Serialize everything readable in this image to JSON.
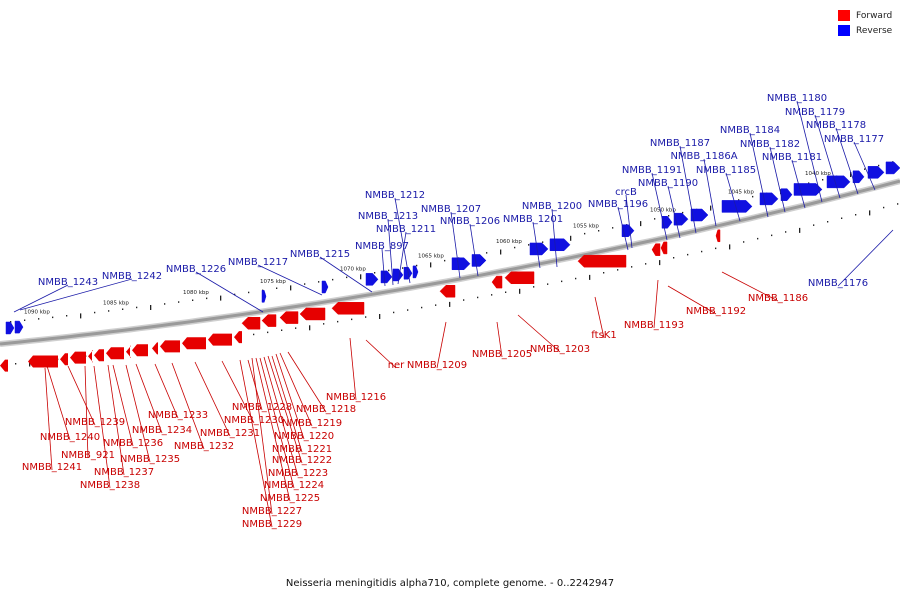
{
  "legend": [
    {
      "label": "Forward",
      "color": "#ff0000"
    },
    {
      "label": "Reverse",
      "color": "#0000ff"
    }
  ],
  "caption": "Neisseria meningitidis alpha710, complete genome. - 0..2242947",
  "colors": {
    "forward": "#e60000",
    "reverse": "#1010e0",
    "backbone": "#9a9a9a",
    "label_reverse": "#1a1aa8",
    "label_forward": "#c80000"
  },
  "scale_labels": [
    "1090 kbp",
    "1085 kbp",
    "1080 kbp",
    "1075 kbp",
    "1070 kbp",
    "1065 kbp",
    "1060 kbp",
    "1055 kbp",
    "1050 kbp",
    "1045 kbp",
    "1040 kbp"
  ],
  "reverse_labels": [
    "NMBB_1243",
    "NMBB_1242",
    "NMBB_1226",
    "NMBB_1217",
    "NMBB_1215",
    "NMBB_897",
    "NMBB_1211",
    "NMBB_1213",
    "NMBB_1212",
    "NMBB_1207",
    "NMBB_1206",
    "NMBB_1201",
    "NMBB_1200",
    "NMBB_1196",
    "crcB",
    "NMBB_1191",
    "NMBB_1190",
    "NMBB_1187",
    "NMBB_1186A",
    "NMBB_1185",
    "NMBB_1184",
    "NMBB_1182",
    "NMBB_1181",
    "NMBB_1180",
    "NMBB_1179",
    "NMBB_1178",
    "NMBB_1177",
    "NMBB_1176"
  ],
  "forward_labels": [
    "NMBB_1241",
    "NMBB_1240",
    "NMBB_1239",
    "NMBB_921",
    "NMBB_1238",
    "NMBB_1237",
    "NMBB_1236",
    "NMBB_1235",
    "NMBB_1234",
    "NMBB_1233",
    "NMBB_1232",
    "NMBB_1231",
    "NMBB_1230",
    "NMBB_1229",
    "NMBB_1228",
    "NMBB_1227",
    "NMBB_1225",
    "NMBB_1224",
    "NMBB_1223",
    "NMBB_1222",
    "NMBB_1221",
    "NMBB_1220",
    "NMBB_1219",
    "NMBB_1218",
    "NMBB_1216",
    "ner",
    "NMBB_1209",
    "NMBB_1205",
    "NMBB_1203",
    "ftsK1",
    "NMBB_1193",
    "NMBB_1192",
    "NMBB_1186"
  ]
}
